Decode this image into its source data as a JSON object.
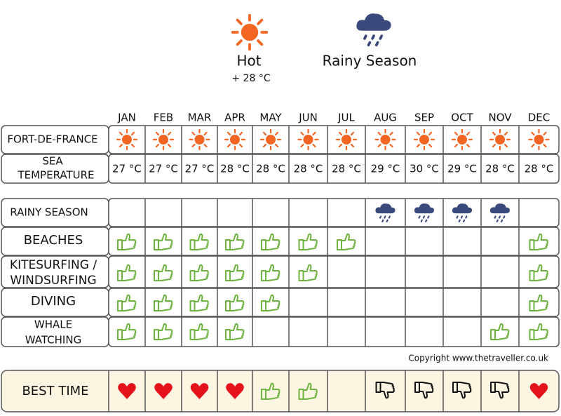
{
  "legend": {
    "hot": {
      "label": "Hot",
      "detail": "+ 28 °C"
    },
    "rainy": {
      "label": "Rainy Season"
    }
  },
  "months": [
    "JAN",
    "FEB",
    "MAR",
    "APR",
    "MAY",
    "JUN",
    "JUL",
    "AUG",
    "SEP",
    "OCT",
    "NOV",
    "DEC"
  ],
  "rows": {
    "city": {
      "label": "FORT-DE-FRANCE"
    },
    "sea": {
      "label": [
        "SEA",
        "TEMPERATURE"
      ],
      "values": [
        "27 °C",
        "27 °C",
        "27 °C",
        "28 °C",
        "28 °C",
        "28 °C",
        "28 °C",
        "29 °C",
        "30 °C",
        "29 °C",
        "28 °C",
        "28 °C"
      ]
    },
    "rainy": {
      "label": "RAINY SEASON"
    },
    "beaches": {
      "label": "BEACHES"
    },
    "kite": {
      "label": [
        "KITESURFING /",
        "WINDSURFING"
      ]
    },
    "diving": {
      "label": "DIVING"
    },
    "whale": {
      "label": [
        "WHALE",
        "WATCHING"
      ]
    },
    "best": {
      "label": "BEST TIME"
    }
  },
  "copyright": "Copyright www.thetraveller.co.uk"
}
